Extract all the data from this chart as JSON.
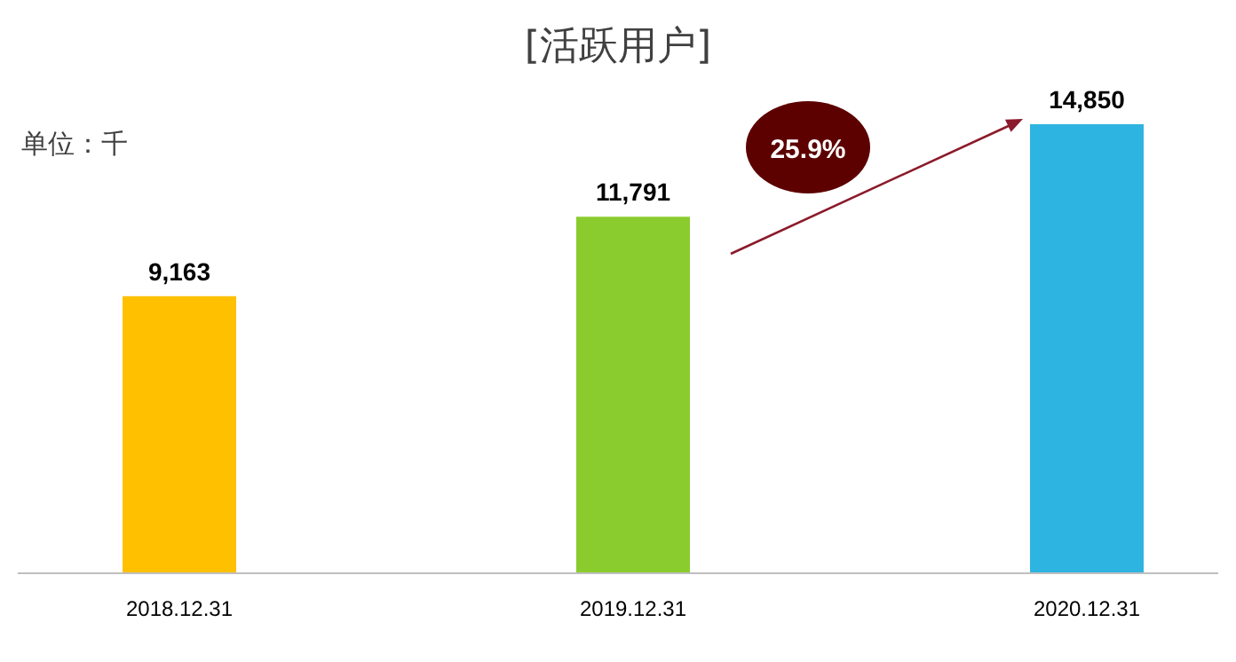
{
  "chart_data": {
    "type": "bar",
    "title": "[活跃用户]",
    "categories": [
      "2018.12.31",
      "2019.12.31",
      "2020.12.31"
    ],
    "values": [
      9163,
      11791,
      14850
    ],
    "colors": [
      "#ffc000",
      "#8acc2e",
      "#2eb4e0"
    ],
    "value_labels": [
      "9,163",
      "11,791",
      "14,850"
    ],
    "annotations": [
      "单位：千",
      "25.9%"
    ]
  }
}
